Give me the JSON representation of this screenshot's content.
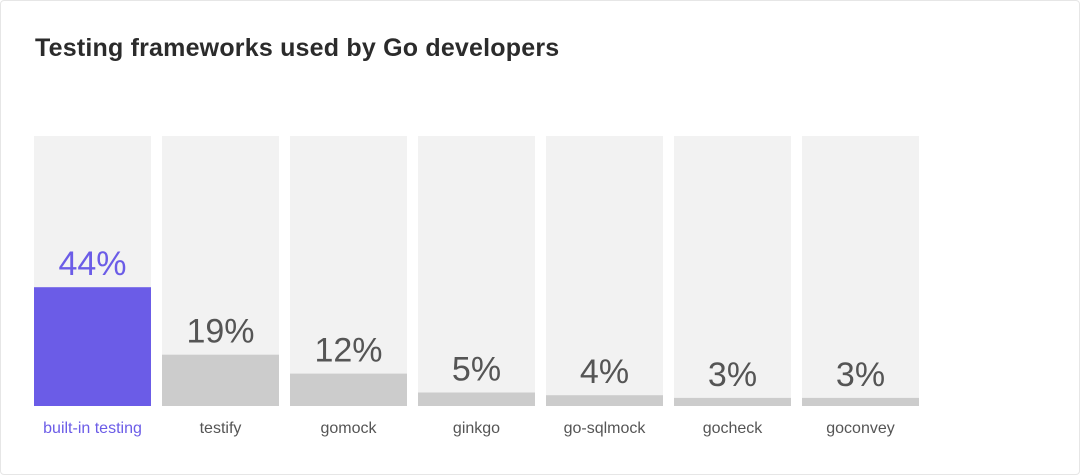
{
  "chart_data": {
    "type": "bar",
    "title": "Testing frameworks used by Go developers",
    "categories": [
      "built-in testing",
      "testify",
      "gomock",
      "ginkgo",
      "go-sqlmock",
      "gocheck",
      "goconvey"
    ],
    "values": [
      44,
      19,
      12,
      5,
      4,
      3,
      3
    ],
    "value_labels": [
      "44%",
      "19%",
      "12%",
      "5%",
      "4%",
      "3%",
      "3%"
    ],
    "unit": "%",
    "ylim": [
      0,
      100
    ],
    "highlight_index": 0,
    "colors": {
      "highlight_bar": "#6b5ce7",
      "highlight_text": "#6b5ce7",
      "bar": "#cccccc",
      "track": "#f2f2f2",
      "value_text": "#555555",
      "label_text": "#555555"
    },
    "grid": false,
    "legend": "none"
  }
}
